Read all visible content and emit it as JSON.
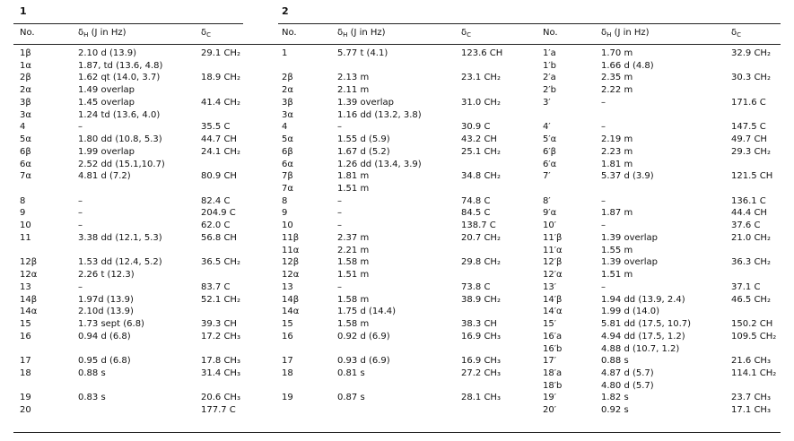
{
  "groups": [
    "1",
    "2"
  ],
  "header": [
    {
      "text": "No."
    },
    {
      "symbol": "δ",
      "sub": "H",
      "rest": " (J in Hz)"
    },
    {
      "symbol": "δ",
      "sub": "C"
    },
    {
      "text": "No."
    },
    {
      "symbol": "δ",
      "sub": "H",
      "rest": " (J in Hz)"
    },
    {
      "symbol": "δ",
      "sub": "C"
    },
    {
      "text": "No."
    },
    {
      "symbol": "δ",
      "sub": "H",
      "rest": " (J in Hz)"
    },
    {
      "symbol": "δ",
      "sub": "C"
    }
  ],
  "rows": [
    [
      "1β",
      "2.10 d (13.9)",
      "29.1 CH₂",
      "1",
      "5.77 t (4.1)",
      "123.6 CH",
      "1′a",
      "1.70 m",
      "32.9 CH₂"
    ],
    [
      "1α",
      "1.87, td (13.6, 4.8)",
      null,
      null,
      null,
      null,
      "1′b",
      "1.66 d (4.8)",
      null
    ],
    [
      "2β",
      "1.62 qt (14.0, 3.7)",
      "18.9 CH₂",
      "2β",
      "2.13 m",
      "23.1 CH₂",
      "2′a",
      "2.35 m",
      "30.3 CH₂"
    ],
    [
      "2α",
      "1.49 overlap",
      null,
      "2α",
      "2.11 m",
      null,
      "2′b",
      "2.22 m",
      null
    ],
    [
      "3β",
      "1.45 overlap",
      "41.4 CH₂",
      "3β",
      "1.39 overlap",
      "31.0 CH₂",
      "3′",
      "–",
      "171.6 C"
    ],
    [
      "3α",
      "1.24 td (13.6, 4.0)",
      null,
      "3α",
      "1.16 dd (13.2, 3.8)",
      null,
      null,
      null,
      null
    ],
    [
      "4",
      "–",
      "35.5 C",
      "4",
      "–",
      "30.9 C",
      "4′",
      "–",
      "147.5 C"
    ],
    [
      "5α",
      "1.80 dd (10.8, 5.3)",
      "44.7 CH",
      "5α",
      "1.55 d (5.9)",
      "43.2 CH",
      "5′α",
      "2.19 m",
      "49.7 CH"
    ],
    [
      "6β",
      "1.99 overlap",
      "24.1 CH₂",
      "6β",
      "1.67 d (5.2)",
      "25.1 CH₂",
      "6′β",
      "2.23 m",
      "29.3 CH₂"
    ],
    [
      "6α",
      "2.52 dd (15.1,10.7)",
      null,
      "6α",
      "1.26 dd (13.4, 3.9)",
      null,
      "6′α",
      "1.81 m",
      null
    ],
    [
      "7α",
      "4.81 d (7.2)",
      "80.9 CH",
      "7β",
      "1.81 m",
      "34.8 CH₂",
      "7′",
      "5.37 d (3.9)",
      "121.5 CH"
    ],
    [
      null,
      null,
      null,
      "7α",
      "1.51 m",
      null,
      null,
      null,
      null
    ],
    [
      "8",
      "–",
      "82.4 C",
      "8",
      "–",
      "74.8 C",
      "8′",
      "–",
      "136.1 C"
    ],
    [
      "9",
      "–",
      "204.9 C",
      "9",
      "–",
      "84.5 C",
      "9′α",
      "1.87 m",
      "44.4 CH"
    ],
    [
      "10",
      "–",
      "62.0 C",
      "10",
      "–",
      "138.7 C",
      "10′",
      "–",
      "37.6 C"
    ],
    [
      "11",
      "3.38 dd (12.1, 5.3)",
      "56.8 CH",
      "11β",
      "2.37 m",
      "20.7 CH₂",
      "11′β",
      "1.39 overlap",
      "21.0 CH₂"
    ],
    [
      null,
      null,
      null,
      "11α",
      "2.21 m",
      null,
      "11′α",
      "1.55 m",
      null
    ],
    [
      "12β",
      "1.53 dd (12.4, 5.2)",
      "36.5 CH₂",
      "12β",
      "1.58 m",
      "29.8 CH₂",
      "12′β",
      "1.39 overlap",
      "36.3 CH₂"
    ],
    [
      "12α",
      "2.26 t (12.3)",
      null,
      "12α",
      "1.51 m",
      null,
      "12′α",
      "1.51 m",
      null
    ],
    [
      "13",
      "–",
      "83.7 C",
      "13",
      "–",
      "73.8 C",
      "13′",
      "–",
      "37.1 C"
    ],
    [
      "14β",
      "1.97d (13.9)",
      "52.1 CH₂",
      "14β",
      "1.58 m",
      "38.9 CH₂",
      "14′β",
      "1.94 dd (13.9, 2.4)",
      "46.5 CH₂"
    ],
    [
      "14α",
      "2.10d (13.9)",
      null,
      "14α",
      "1.75 d (14.4)",
      null,
      "14′α",
      "1.99 d (14.0)",
      null
    ],
    [
      "15",
      "1.73 sept (6.8)",
      "39.3 CH",
      "15",
      "1.58 m",
      "38.3 CH",
      "15′",
      "5.81 dd (17.5, 10.7)",
      "150.2 CH"
    ],
    [
      "16",
      "0.94 d (6.8)",
      "17.2 CH₃",
      "16",
      "0.92 d (6.9)",
      "16.9 CH₃",
      "16′a",
      "4.94 dd (17.5, 1.2)",
      "109.5 CH₂"
    ],
    [
      null,
      null,
      null,
      null,
      null,
      null,
      "16′b",
      "4.88 d (10.7, 1.2)",
      null
    ],
    [
      "17",
      "0.95 d (6.8)",
      "17.8 CH₃",
      "17",
      "0.93 d (6.9)",
      "16.9 CH₃",
      "17′",
      "0.88 s",
      "21.6 CH₃"
    ],
    [
      "18",
      "0.88 s",
      "31.4 CH₃",
      "18",
      "0.81 s",
      "27.2 CH₃",
      "18′a",
      "4.87 d (5.7)",
      "114.1 CH₂"
    ],
    [
      null,
      null,
      null,
      null,
      null,
      null,
      "18′b",
      "4.80 d (5.7)",
      null
    ],
    [
      "19",
      "0.83 s",
      "20.6 CH₃",
      "19",
      "0.87 s",
      "28.1 CH₃",
      "19′",
      "1.82 s",
      "23.7 CH₃"
    ],
    [
      "20",
      null,
      "177.7 C",
      null,
      null,
      null,
      "20′",
      "0.92 s",
      "17.1 CH₃"
    ]
  ]
}
